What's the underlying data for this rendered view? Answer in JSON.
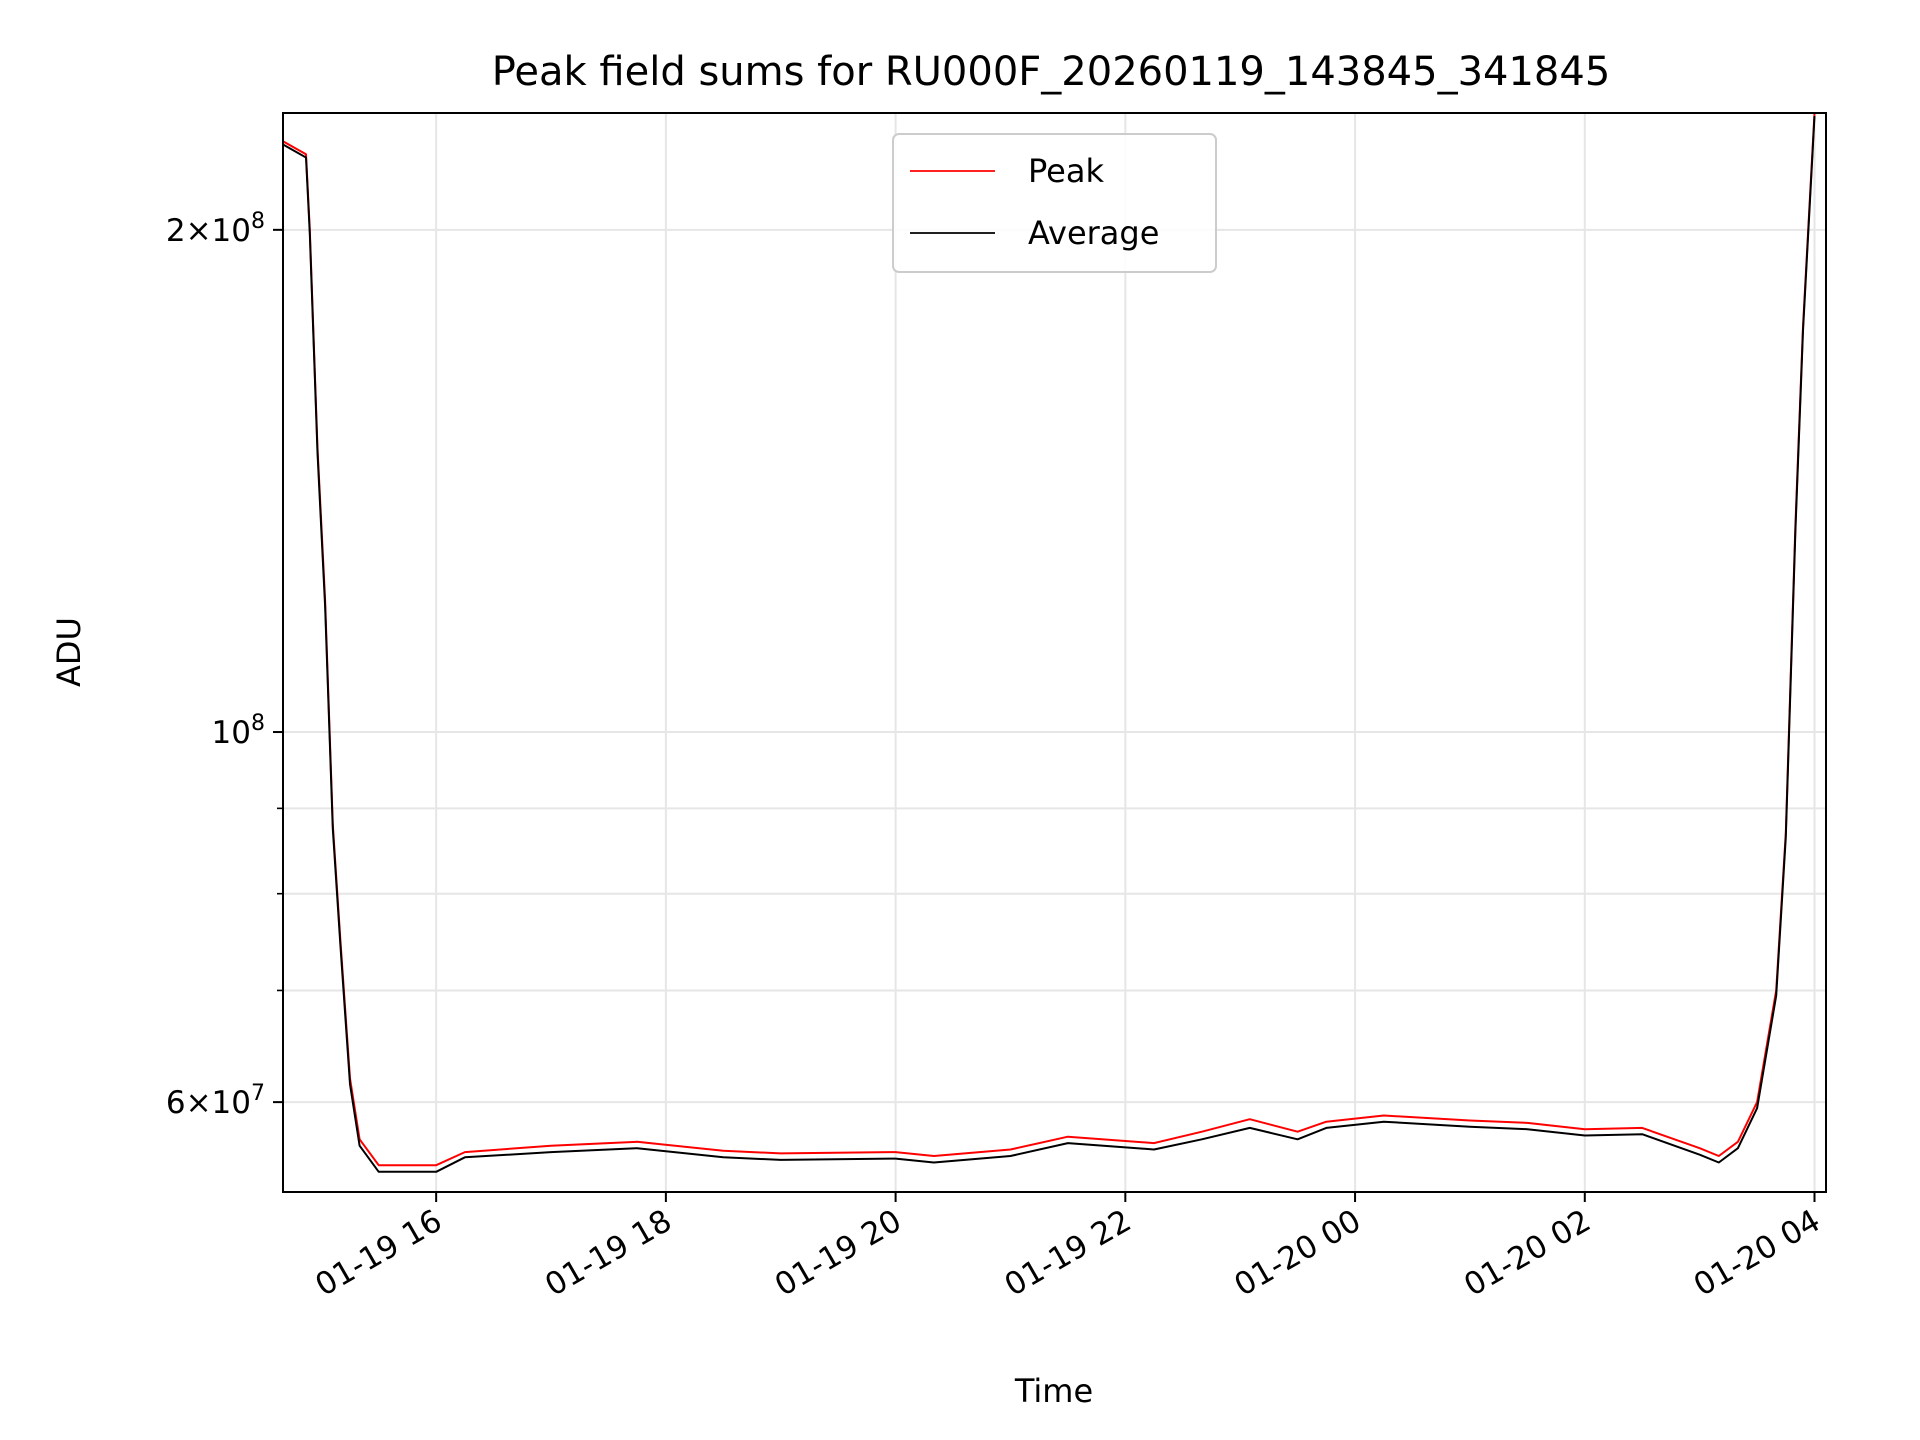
{
  "chart_data": {
    "type": "line",
    "title": "Peak field sums for RU000F_20260119_143845_341845",
    "xlabel": "Time",
    "ylabel": "ADU",
    "yscale": "log",
    "grid": true,
    "legend_position": "upper-center",
    "xlim": [
      "2026-01-19 14:40",
      "2026-01-20 04:06"
    ],
    "ylim": [
      53000000,
      235000000
    ],
    "x_ticks": [
      {
        "value": "2026-01-19 16:00",
        "label": "01-19 16"
      },
      {
        "value": "2026-01-19 18:00",
        "label": "01-19 18"
      },
      {
        "value": "2026-01-19 20:00",
        "label": "01-19 20"
      },
      {
        "value": "2026-01-19 22:00",
        "label": "01-19 22"
      },
      {
        "value": "2026-01-20 00:00",
        "label": "01-20 00"
      },
      {
        "value": "2026-01-20 02:00",
        "label": "01-20 02"
      },
      {
        "value": "2026-01-20 04:00",
        "label": "01-20 04"
      }
    ],
    "y_major_ticks": [
      {
        "value": 60000000,
        "mantissa": "6",
        "exponent": "7"
      },
      {
        "value": 100000000,
        "mantissa": "",
        "exponent": "8"
      },
      {
        "value": 200000000,
        "mantissa": "2",
        "exponent": "8"
      }
    ],
    "y_minor_ticks": [
      70000000,
      80000000,
      90000000
    ],
    "series": [
      {
        "name": "Peak",
        "color": "#ff0000",
        "points": [
          [
            "2026-01-19 14:40",
            226000000
          ],
          [
            "2026-01-19 14:52",
            222000000
          ],
          [
            "2026-01-19 14:54",
            200000000
          ],
          [
            "2026-01-19 14:58",
            148000000
          ],
          [
            "2026-01-19 15:02",
            120000000
          ],
          [
            "2026-01-19 15:06",
            88000000
          ],
          [
            "2026-01-19 15:10",
            75000000
          ],
          [
            "2026-01-19 15:15",
            62000000
          ],
          [
            "2026-01-19 15:20",
            57000000
          ],
          [
            "2026-01-19 15:30",
            55000000
          ],
          [
            "2026-01-19 16:00",
            55000000
          ],
          [
            "2026-01-19 16:15",
            56000000
          ],
          [
            "2026-01-19 17:00",
            56500000
          ],
          [
            "2026-01-19 17:45",
            56800000
          ],
          [
            "2026-01-19 18:30",
            56100000
          ],
          [
            "2026-01-19 19:00",
            55900000
          ],
          [
            "2026-01-19 20:00",
            56000000
          ],
          [
            "2026-01-19 20:20",
            55700000
          ],
          [
            "2026-01-19 21:00",
            56200000
          ],
          [
            "2026-01-19 21:30",
            57200000
          ],
          [
            "2026-01-19 22:15",
            56700000
          ],
          [
            "2026-01-19 22:40",
            57600000
          ],
          [
            "2026-01-19 23:05",
            58600000
          ],
          [
            "2026-01-19 23:30",
            57600000
          ],
          [
            "2026-01-19 23:45",
            58400000
          ],
          [
            "2026-01-20 00:15",
            58900000
          ],
          [
            "2026-01-20 01:00",
            58500000
          ],
          [
            "2026-01-20 01:30",
            58300000
          ],
          [
            "2026-01-20 02:00",
            57800000
          ],
          [
            "2026-01-20 02:30",
            57900000
          ],
          [
            "2026-01-20 03:00",
            56300000
          ],
          [
            "2026-01-20 03:10",
            55700000
          ],
          [
            "2026-01-20 03:20",
            56800000
          ],
          [
            "2026-01-20 03:30",
            60000000
          ],
          [
            "2026-01-20 03:40",
            70000000
          ],
          [
            "2026-01-20 03:45",
            87000000
          ],
          [
            "2026-01-20 03:50",
            133000000
          ],
          [
            "2026-01-20 03:54",
            175000000
          ],
          [
            "2026-01-20 04:00",
            235000000
          ]
        ]
      },
      {
        "name": "Average",
        "color": "#000000",
        "points": [
          [
            "2026-01-19 14:40",
            225000000
          ],
          [
            "2026-01-19 14:52",
            221000000
          ],
          [
            "2026-01-19 14:54",
            199000000
          ],
          [
            "2026-01-19 14:58",
            147000000
          ],
          [
            "2026-01-19 15:02",
            119000000
          ],
          [
            "2026-01-19 15:06",
            87500000
          ],
          [
            "2026-01-19 15:10",
            74500000
          ],
          [
            "2026-01-19 15:15",
            61500000
          ],
          [
            "2026-01-19 15:20",
            56500000
          ],
          [
            "2026-01-19 15:30",
            54500000
          ],
          [
            "2026-01-19 16:00",
            54500000
          ],
          [
            "2026-01-19 16:15",
            55600000
          ],
          [
            "2026-01-19 17:00",
            56000000
          ],
          [
            "2026-01-19 17:45",
            56300000
          ],
          [
            "2026-01-19 18:30",
            55600000
          ],
          [
            "2026-01-19 19:00",
            55400000
          ],
          [
            "2026-01-19 20:00",
            55500000
          ],
          [
            "2026-01-19 20:20",
            55200000
          ],
          [
            "2026-01-19 21:00",
            55700000
          ],
          [
            "2026-01-19 21:30",
            56700000
          ],
          [
            "2026-01-19 22:15",
            56200000
          ],
          [
            "2026-01-19 22:40",
            57000000
          ],
          [
            "2026-01-19 23:05",
            57900000
          ],
          [
            "2026-01-19 23:30",
            57000000
          ],
          [
            "2026-01-19 23:45",
            57900000
          ],
          [
            "2026-01-20 00:15",
            58400000
          ],
          [
            "2026-01-20 01:00",
            58000000
          ],
          [
            "2026-01-20 01:30",
            57800000
          ],
          [
            "2026-01-20 02:00",
            57300000
          ],
          [
            "2026-01-20 02:30",
            57400000
          ],
          [
            "2026-01-20 03:00",
            55800000
          ],
          [
            "2026-01-20 03:10",
            55200000
          ],
          [
            "2026-01-20 03:20",
            56300000
          ],
          [
            "2026-01-20 03:30",
            59500000
          ],
          [
            "2026-01-20 03:40",
            69500000
          ],
          [
            "2026-01-20 03:45",
            86500000
          ],
          [
            "2026-01-20 03:50",
            132000000
          ],
          [
            "2026-01-20 03:54",
            174000000
          ],
          [
            "2026-01-20 04:00",
            234000000
          ]
        ]
      }
    ]
  }
}
